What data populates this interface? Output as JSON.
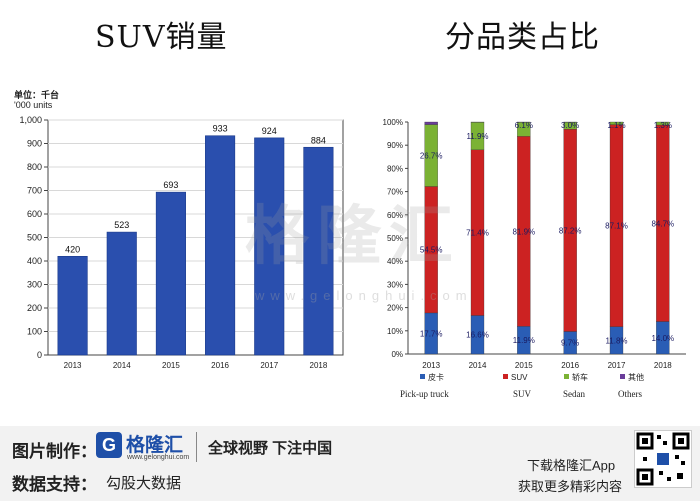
{
  "titles": {
    "left": "SUV销量",
    "right": "分品类占比"
  },
  "unit": {
    "line1": "单位：千台",
    "line2": "'000 units"
  },
  "chart_data": [
    {
      "type": "bar",
      "categories": [
        "2013",
        "2014",
        "2015",
        "2016",
        "2017",
        "2018"
      ],
      "values": [
        420,
        523,
        693,
        933,
        924,
        884
      ],
      "ylim": [
        0,
        1000
      ],
      "yticks": [
        "0",
        "100",
        "200",
        "300",
        "400",
        "500",
        "600",
        "700",
        "800",
        "900",
        "1,000"
      ],
      "color": "#2a4fae"
    },
    {
      "type": "bar",
      "stacked": true,
      "categories": [
        "2013",
        "2014",
        "2015",
        "2016",
        "2017",
        "2018"
      ],
      "yticks": [
        "0%",
        "10%",
        "20%",
        "30%",
        "40%",
        "50%",
        "60%",
        "70%",
        "80%",
        "90%",
        "100%"
      ],
      "series": [
        {
          "name": "皮卡",
          "name_en": "Pick-up truck",
          "color": "#2a5db5",
          "values": [
            17.7,
            16.6,
            11.9,
            9.7,
            11.8,
            14.0
          ],
          "labels": [
            "17.7%",
            "16.6%",
            "11.9%",
            "9.7%",
            "11.8%",
            "14.0%"
          ]
        },
        {
          "name": "SUV",
          "name_en": "SUV",
          "color": "#cc2222",
          "values": [
            54.5,
            71.4,
            81.9,
            87.2,
            87.1,
            84.7
          ],
          "labels": [
            "54.5%",
            "71.4%",
            "81.9%",
            "87.2%",
            "87.1%",
            "84.7%"
          ]
        },
        {
          "name": "轿车",
          "name_en": "Sedan",
          "color": "#7bb234",
          "values": [
            26.7,
            11.9,
            6.1,
            3.0,
            1.1,
            1.3
          ],
          "labels": [
            "26.7%",
            "11.9%",
            "6.1%",
            "3.0%",
            "1.1%",
            "1.3%"
          ]
        },
        {
          "name": "其他",
          "name_en": "Others",
          "color": "#6a3d9a",
          "values": [
            1.1,
            0.1,
            0.1,
            0.1,
            0.0,
            0.0
          ],
          "labels": [
            "",
            "",
            "",
            "",
            "",
            ""
          ]
        }
      ]
    }
  ],
  "watermark": {
    "main": "格隆汇",
    "url": "www.gelonghui.com"
  },
  "footer": {
    "maker_label": "图片制作：",
    "logo_glyph": "G",
    "logo_name": "格隆汇",
    "logo_url": "www.gelonghui.com",
    "slogan": "全球视野 下注中国",
    "data_label": "数据支持：",
    "data_source": "勾股大数据",
    "download": "下载格隆汇App",
    "more": "获取更多精彩内容"
  }
}
